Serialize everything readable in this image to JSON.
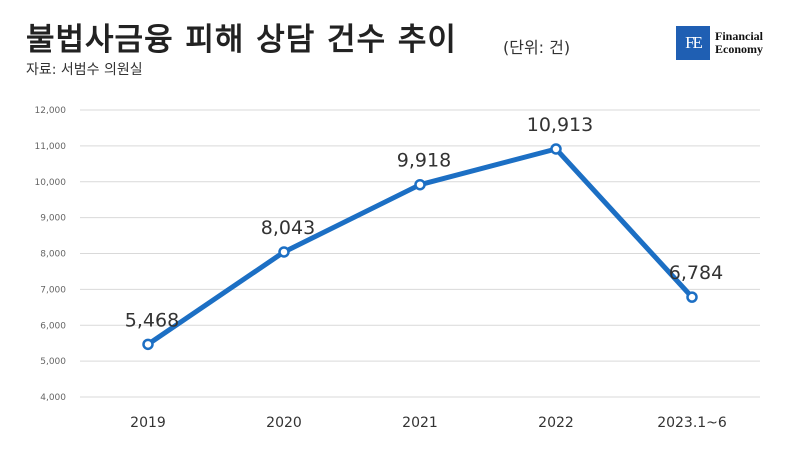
{
  "header": {
    "title": "불법사금융 피해 상담 건수 추이",
    "unit": "(단위: 건)",
    "source": "자료: 서범수 의원실"
  },
  "logo": {
    "mark": "FE",
    "line1": "Financial",
    "line2": "Economy",
    "color": "#1f5fb3"
  },
  "chart_data": {
    "type": "line",
    "categories": [
      "2019",
      "2020",
      "2021",
      "2022",
      "2023.1~6"
    ],
    "values": [
      5468,
      8043,
      9918,
      10913,
      6784
    ],
    "value_labels": [
      "5,468",
      "8,043",
      "9,918",
      "10,913",
      "6,784"
    ],
    "ylim": [
      4000,
      12000
    ],
    "yticks": [
      4000,
      5000,
      6000,
      7000,
      8000,
      9000,
      10000,
      11000,
      12000
    ],
    "ytick_labels": [
      "4,000",
      "5,000",
      "6,000",
      "7,000",
      "8,000",
      "9,000",
      "10,000",
      "11,000",
      "12,000"
    ],
    "grid": true,
    "line_color": "#1c6fc4",
    "grid_color": "#d9d9d9"
  }
}
